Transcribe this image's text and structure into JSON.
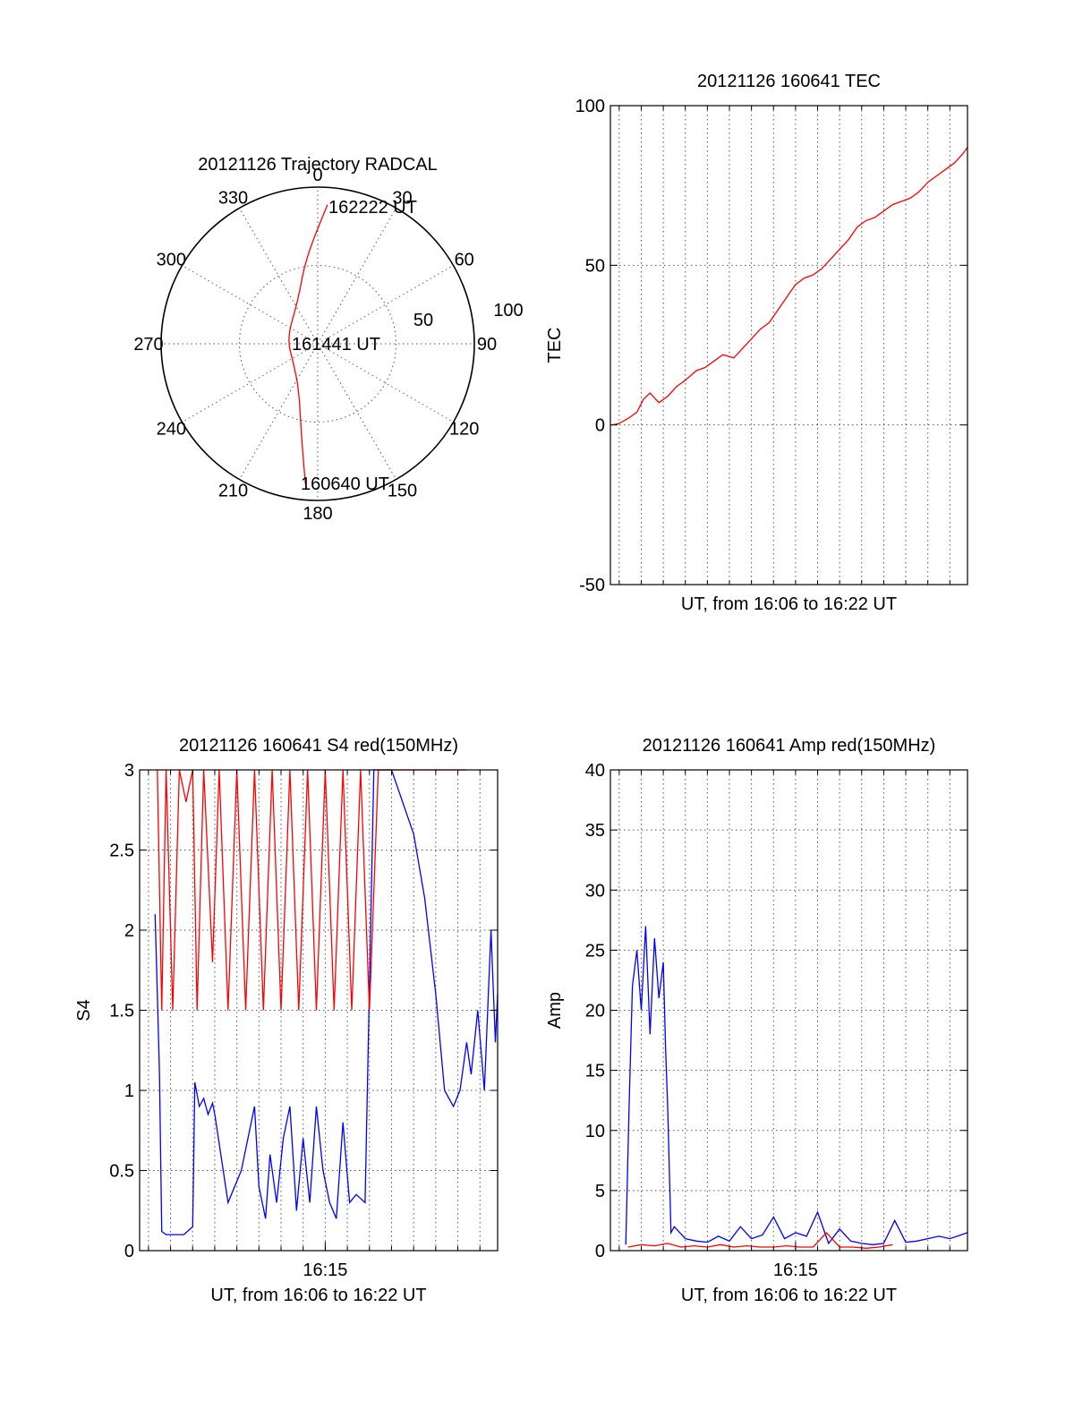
{
  "polar": {
    "title": "20121126 Trajectory RADCAL",
    "azimuth_labels": [
      "0",
      "30",
      "60",
      "90",
      "120",
      "150",
      "180",
      "210",
      "240",
      "270",
      "300",
      "330"
    ],
    "radial_labels": [
      "50",
      "100"
    ],
    "start_label": "160640 UT",
    "mid_label": "161441 UT",
    "end_label": "162222 UT",
    "trajectory_color": "#ff0000"
  },
  "chart_data": [
    {
      "type": "scatter",
      "title": "20121126 Trajectory RADCAL",
      "subtype": "polar",
      "r_range": [
        0,
        100
      ],
      "r_ticks": [
        50,
        100
      ],
      "azimuth_ticks": [
        0,
        30,
        60,
        90,
        120,
        150,
        180,
        210,
        240,
        270,
        300,
        330
      ],
      "series": [
        {
          "color": "#ff0000",
          "points": [
            {
              "label": "160640 UT",
              "az": 185,
              "zen": 90
            },
            {
              "az": 190,
              "zen": 60
            },
            {
              "az": 202,
              "zen": 32
            },
            {
              "az": 230,
              "zen": 20
            },
            {
              "label": "161441 UT",
              "az": 280,
              "zen": 20
            },
            {
              "az": 335,
              "zen": 30
            },
            {
              "az": 352,
              "zen": 55
            },
            {
              "label": "162222 UT",
              "az": 4,
              "zen": 89
            }
          ]
        }
      ]
    },
    {
      "type": "line",
      "title": "20121126 160641 TEC",
      "xlabel": "UT, from 16:06 to 16:22 UT",
      "ylabel": "TEC",
      "xlim": [
        6.6,
        22.8
      ],
      "ylim": [
        -50,
        100
      ],
      "yticks": [
        -50,
        0,
        50,
        100
      ],
      "grid": true,
      "series": [
        {
          "color": "#ff0000",
          "x": [
            6.68,
            7.0,
            7.4,
            7.8,
            8.1,
            8.4,
            8.8,
            9.2,
            9.6,
            10.0,
            10.5,
            10.9,
            11.3,
            11.7,
            12.2,
            12.6,
            13.0,
            13.4,
            13.8,
            14.2,
            14.6,
            15.0,
            15.4,
            15.8,
            16.2,
            16.6,
            17.0,
            17.4,
            17.8,
            18.2,
            18.6,
            19.0,
            19.4,
            19.8,
            20.2,
            20.6,
            21.0,
            21.4,
            21.8,
            22.2,
            22.6,
            22.8
          ],
          "y": [
            0,
            0.5,
            2,
            4,
            8,
            10,
            7,
            9,
            12,
            14,
            17,
            18,
            20,
            22,
            21,
            24,
            27,
            30,
            32,
            36,
            40,
            44,
            46,
            47,
            49,
            52,
            55,
            58,
            62,
            64,
            65,
            67,
            69,
            70,
            71,
            73,
            76,
            78,
            80,
            82,
            85,
            87
          ]
        }
      ]
    },
    {
      "type": "line",
      "title": "20121126 160641 S4 red(150MHz)",
      "xlabel": "UT, from 16:06 to 16:22 UT",
      "ylabel": "S4",
      "xlim": [
        6.6,
        22.8
      ],
      "ylim": [
        0,
        3
      ],
      "yticks": [
        0,
        0.5,
        1,
        1.5,
        2,
        2.5,
        3
      ],
      "xticks": [
        "16:15"
      ],
      "xtick_values": [
        15
      ],
      "grid": true,
      "series": [
        {
          "color": "#0000ff",
          "x": [
            7.3,
            7.4,
            7.5,
            7.6,
            7.8,
            8.2,
            8.6,
            9.0,
            9.1,
            9.3,
            9.5,
            9.7,
            9.9,
            10.0,
            10.6,
            11.2,
            11.8,
            12.0,
            12.3,
            12.5,
            12.8,
            13.1,
            13.4,
            13.7,
            14.0,
            14.3,
            14.6,
            14.9,
            15.2,
            15.5,
            15.8,
            16.1,
            16.4,
            16.8,
            17.2,
            17.6,
            18.0,
            18.5,
            19.0,
            19.5,
            20.0,
            20.4,
            20.8,
            21.1,
            21.4,
            21.6,
            21.9,
            22.2,
            22.5,
            22.7,
            22.8
          ],
          "y": [
            2.1,
            1.6,
            1.1,
            0.12,
            0.1,
            0.1,
            0.1,
            0.15,
            1.05,
            0.9,
            0.95,
            0.85,
            0.92,
            0.85,
            0.3,
            0.5,
            0.9,
            0.4,
            0.2,
            0.6,
            0.3,
            0.7,
            0.9,
            0.25,
            0.7,
            0.3,
            0.9,
            0.5,
            0.3,
            0.2,
            0.8,
            0.3,
            0.35,
            0.3,
            3,
            3,
            3,
            2.8,
            2.6,
            2.2,
            1.6,
            1.0,
            0.9,
            1.0,
            1.3,
            1.1,
            1.5,
            1.0,
            2.0,
            1.3,
            1.6
          ]
        },
        {
          "color": "#ff0000",
          "x": [
            7.4,
            7.6,
            7.8,
            8.1,
            8.4,
            8.7,
            9.0,
            9.2,
            9.5,
            9.9,
            10.2,
            10.6,
            11.0,
            11.4,
            11.8,
            12.2,
            12.6,
            13.0,
            13.4,
            13.8,
            14.2,
            14.6,
            15.0,
            15.4,
            15.8,
            16.2,
            16.6,
            17.0,
            17.4,
            18.3,
            20.2,
            20.6,
            21.0,
            21.4
          ],
          "y": [
            3,
            1.5,
            3,
            1.5,
            3,
            2.8,
            3,
            1.5,
            3,
            1.8,
            3,
            1.5,
            3,
            1.5,
            3,
            1.5,
            3,
            1.5,
            3,
            1.5,
            3,
            1.5,
            3,
            1.5,
            3,
            1.5,
            3,
            1.5,
            3,
            3,
            3,
            3,
            3,
            3
          ]
        }
      ]
    },
    {
      "type": "line",
      "title": "20121126 160641 Amp red(150MHz)",
      "xlabel": "UT, from 16:06 to 16:22 UT",
      "ylabel": "Amp",
      "xlim": [
        6.6,
        22.8
      ],
      "ylim": [
        0,
        40
      ],
      "yticks": [
        0,
        5,
        10,
        15,
        20,
        25,
        30,
        35,
        40
      ],
      "xticks": [
        "16:15"
      ],
      "xtick_values": [
        15
      ],
      "grid": true,
      "series": [
        {
          "color": "#0000ff",
          "x": [
            7.3,
            7.45,
            7.6,
            7.8,
            8.0,
            8.2,
            8.4,
            8.6,
            8.8,
            9.0,
            9.1,
            9.2,
            9.35,
            9.5,
            10.0,
            10.5,
            11.0,
            11.5,
            12.0,
            12.5,
            13.0,
            13.5,
            14.0,
            14.5,
            15.0,
            15.5,
            16.0,
            16.5,
            17.0,
            17.5,
            18.0,
            18.5,
            19.0,
            19.5,
            20.0,
            20.5,
            21.0,
            21.5,
            22.0,
            22.5,
            22.8
          ],
          "y": [
            0.5,
            12,
            22,
            25,
            20,
            27,
            18,
            26,
            21,
            24,
            17,
            12,
            1.5,
            2,
            1,
            0.8,
            0.7,
            1.2,
            0.8,
            2,
            1,
            1.3,
            2.8,
            1,
            1.5,
            1.2,
            3.2,
            0.6,
            1.8,
            0.8,
            0.6,
            0.5,
            0.6,
            2.5,
            0.7,
            0.8,
            1.0,
            1.2,
            1.0,
            1.3,
            1.5
          ]
        },
        {
          "color": "#ff0000",
          "x": [
            7.4,
            8.0,
            8.6,
            9.2,
            9.8,
            10.4,
            11.0,
            11.6,
            12.2,
            12.8,
            13.4,
            14.0,
            14.6,
            15.2,
            15.8,
            16.4,
            17.0,
            17.6,
            18.2,
            18.8,
            19.4
          ],
          "y": [
            0.3,
            0.5,
            0.4,
            0.6,
            0.3,
            0.4,
            0.3,
            0.5,
            0.3,
            0.4,
            0.3,
            0.3,
            0.4,
            0.3,
            0.3,
            1.5,
            0.3,
            0.3,
            0.2,
            0.3,
            0.5
          ]
        }
      ]
    }
  ]
}
